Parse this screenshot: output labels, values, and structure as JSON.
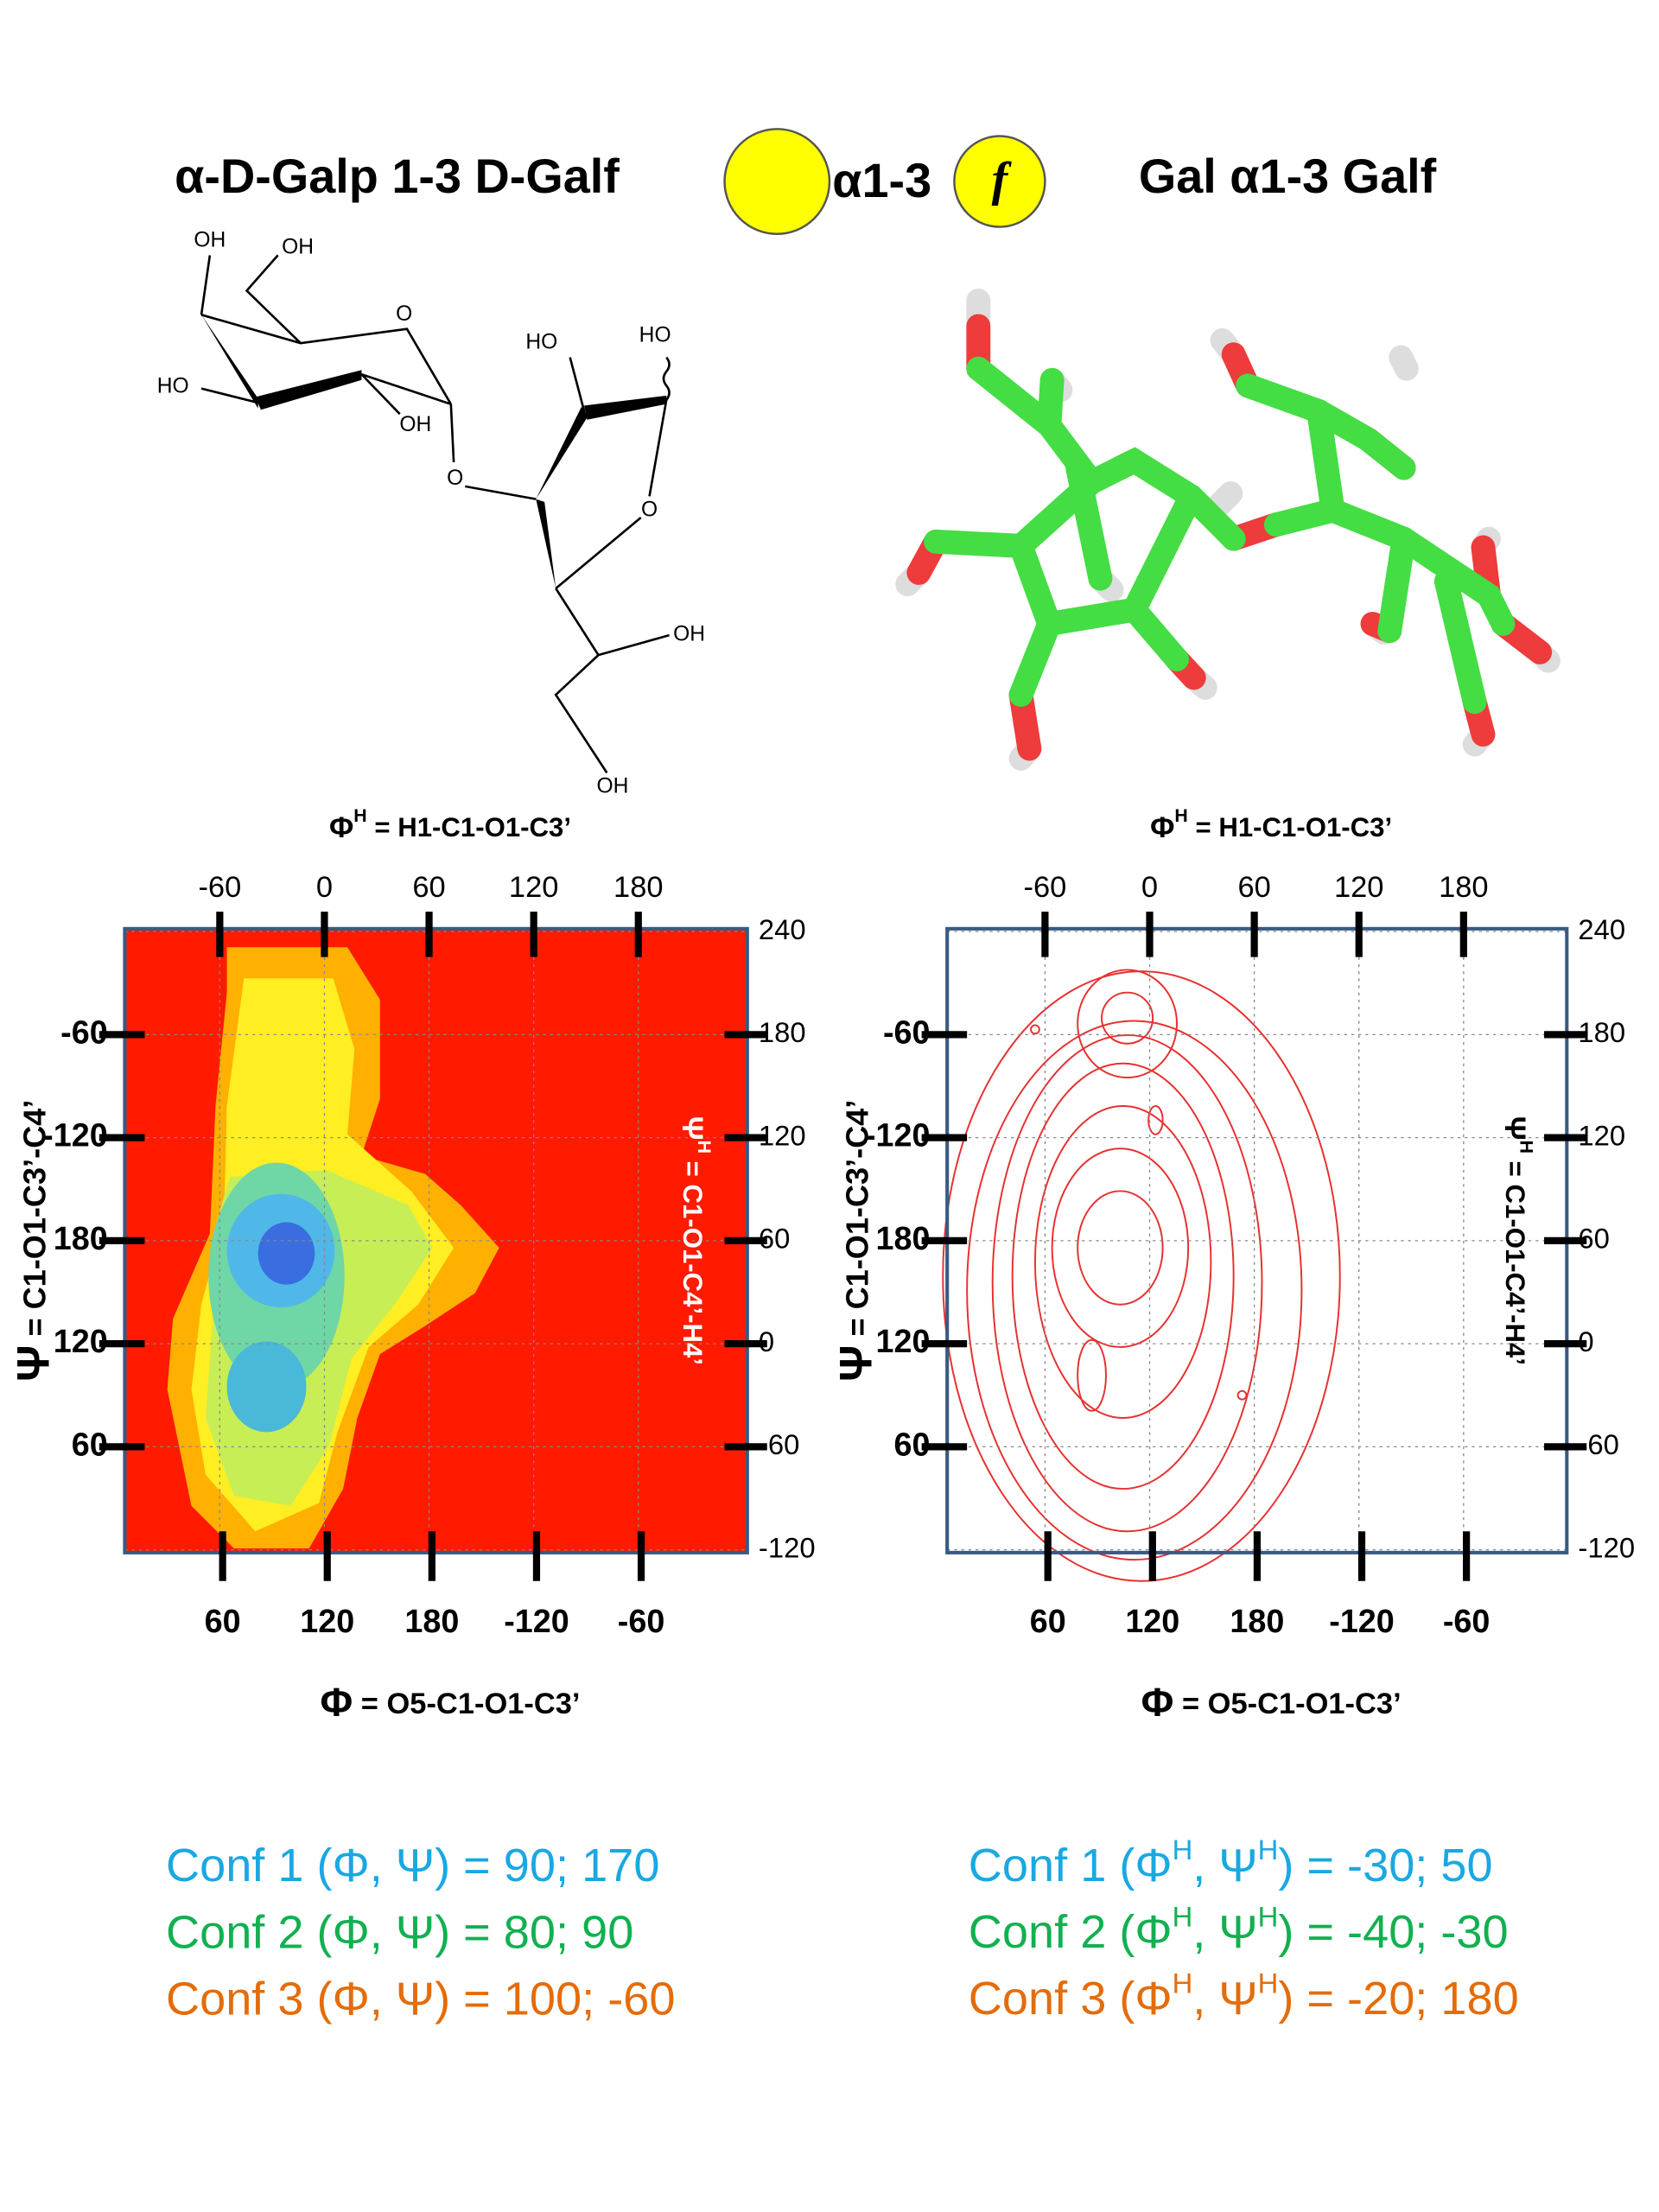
{
  "header": {
    "left_title": "α-D-Galp 1-3 D-Galf",
    "linkage": "α1-3",
    "furanose_symbol": "f",
    "right_title": "Gal α1-3 Galf"
  },
  "structure": {
    "labels": [
      "OH",
      "OH",
      "O",
      "HO",
      "OH",
      "O",
      "HO",
      "HO",
      "O",
      "OH",
      "OH"
    ]
  },
  "plots": [
    {
      "top_axis_label": {
        "symbol": "Φ",
        "sup": "H",
        "text": " = H1-C1-O1-C3’"
      },
      "top_ticks": [
        -60,
        0,
        60,
        120,
        180
      ],
      "right_ticks": [
        240,
        180,
        120,
        60,
        0,
        -60,
        -120
      ],
      "right_axis_label": {
        "symbol": "Ψ",
        "sup": "H",
        "text": " = C1-O1-C4’-H4’"
      },
      "left_ticks": [
        -60,
        -120,
        180,
        120,
        60
      ],
      "left_axis_label": {
        "symbol": "Ψ",
        "text": " = C1-O1-C3’-C4’"
      },
      "bottom_ticks": [
        60,
        120,
        180,
        -120,
        -60
      ],
      "bottom_axis_label": {
        "symbol": "Φ",
        "text": " = O5-C1-O1-C3’"
      }
    },
    {
      "top_axis_label": {
        "symbol": "Φ",
        "sup": "H",
        "text": " = H1-C1-O1-C3’"
      },
      "top_ticks": [
        -60,
        0,
        60,
        120,
        180
      ],
      "right_ticks": [
        240,
        180,
        120,
        60,
        0,
        -60,
        -120
      ],
      "right_axis_label": {
        "symbol": "Ψ",
        "sup": "H",
        "text": " = C1-O1-C4’-H4’"
      },
      "left_ticks": [
        -60,
        -120,
        180,
        120,
        60
      ],
      "left_axis_label": {
        "symbol": "Ψ",
        "text": " = C1-O1-C3’-C4’"
      },
      "bottom_ticks": [
        60,
        120,
        180,
        -120,
        -60
      ],
      "bottom_axis_label": {
        "symbol": "Φ",
        "text": " = O5-C1-O1-C3’"
      }
    }
  ],
  "conformations": {
    "left": [
      {
        "text": "Conf 1 (Φ, Ψ) = 90; 170",
        "color": "#1aa8e2"
      },
      {
        "text": "Conf 2 (Φ, Ψ) = 80; 90",
        "color": "#12b050"
      },
      {
        "text": "Conf 3 (Φ, Ψ) = 100; -60",
        "color": "#e46c0a"
      }
    ],
    "right": [
      {
        "parts": [
          "Conf 1 (Φ",
          "H",
          ", Ψ",
          "H",
          ") = -30; 50"
        ],
        "color": "#1aa8e2"
      },
      {
        "parts": [
          "Conf 2 (Φ",
          "H",
          ", Ψ",
          "H",
          ") = -40; -30"
        ],
        "color": "#12b050"
      },
      {
        "parts": [
          "Conf 3 (Φ",
          "H",
          ", Ψ",
          "H",
          ") = -20; 180"
        ],
        "color": "#e46c0a"
      }
    ]
  }
}
